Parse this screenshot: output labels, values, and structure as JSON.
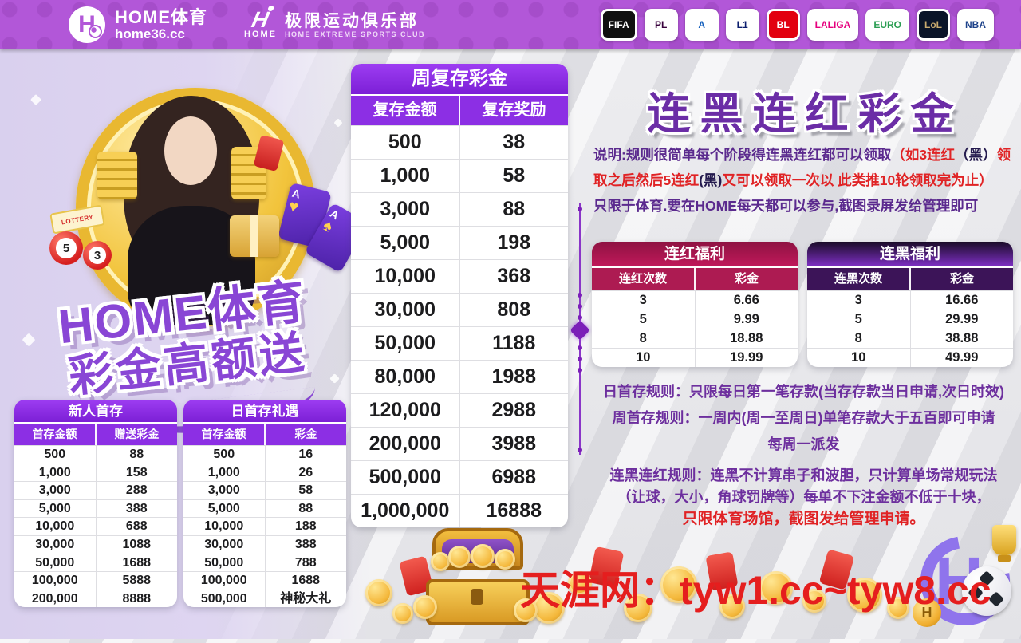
{
  "header": {
    "brand_primary": {
      "logo_letter": "H",
      "title": "HOME体育",
      "domain": "home36.cc"
    },
    "brand_secondary": {
      "logo_text": "HOME",
      "title": "极限运动俱乐部",
      "subtitle": "HOME EXTREME SPORTS CLUB"
    },
    "leagues": [
      {
        "id": "ea-sports-fifa",
        "short": "FIFA",
        "bg": "#101010",
        "fg": "#ffffff"
      },
      {
        "id": "premier-league",
        "short": "PL",
        "bg": "#ffffff",
        "fg": "#38003c"
      },
      {
        "id": "serie-a",
        "short": "A",
        "bg": "#ffffff",
        "fg": "#1560bd"
      },
      {
        "id": "ligue-1",
        "short": "L1",
        "bg": "#ffffff",
        "fg": "#0b1e6e"
      },
      {
        "id": "bundesliga",
        "short": "BL",
        "bg": "#e2000f",
        "fg": "#ffffff"
      },
      {
        "id": "laliga",
        "short": "LALIGA",
        "bg": "#ffffff",
        "fg": "#e6007e"
      },
      {
        "id": "euro-2024",
        "short": "EURO",
        "bg": "#ffffff",
        "fg": "#2a9d52"
      },
      {
        "id": "league-of-legends",
        "short": "LoL",
        "bg": "#0a1428",
        "fg": "#c8aa6e"
      },
      {
        "id": "nba",
        "short": "NBA",
        "bg": "#ffffff",
        "fg": "#1d428a"
      }
    ]
  },
  "hero": {
    "line1": "HOME体育",
    "line2": "彩金高额送",
    "decor": {
      "lottery_label": "LOTTERY",
      "ball_numbers": [
        "5",
        "3"
      ],
      "card_rank": "A",
      "card_suits": [
        "♥",
        "♠"
      ]
    }
  },
  "weekly_table": {
    "title": "周复存彩金",
    "headers": [
      "复存金额",
      "复存奖励"
    ],
    "rows": [
      [
        "500",
        "38"
      ],
      [
        "1,000",
        "58"
      ],
      [
        "3,000",
        "88"
      ],
      [
        "5,000",
        "198"
      ],
      [
        "10,000",
        "368"
      ],
      [
        "30,000",
        "808"
      ],
      [
        "50,000",
        "1188"
      ],
      [
        "80,000",
        "1988"
      ],
      [
        "120,000",
        "2988"
      ],
      [
        "200,000",
        "3988"
      ],
      [
        "500,000",
        "6988"
      ],
      [
        "1,000,000",
        "16888"
      ]
    ]
  },
  "new_user_table": {
    "title": "新人首存",
    "headers": [
      "首存金额",
      "赠送彩金"
    ],
    "rows": [
      [
        "500",
        "88"
      ],
      [
        "1,000",
        "158"
      ],
      [
        "3,000",
        "288"
      ],
      [
        "5,000",
        "388"
      ],
      [
        "10,000",
        "688"
      ],
      [
        "30,000",
        "1088"
      ],
      [
        "50,000",
        "1688"
      ],
      [
        "100,000",
        "5888"
      ],
      [
        "200,000",
        "8888"
      ]
    ]
  },
  "daily_table": {
    "title": "日首存礼遇",
    "headers": [
      "首存金额",
      "彩金"
    ],
    "rows": [
      [
        "500",
        "16"
      ],
      [
        "1,000",
        "26"
      ],
      [
        "3,000",
        "58"
      ],
      [
        "5,000",
        "88"
      ],
      [
        "10,000",
        "188"
      ],
      [
        "30,000",
        "388"
      ],
      [
        "50,000",
        "788"
      ],
      [
        "100,000",
        "1688"
      ],
      [
        "500,000",
        "神秘大礼"
      ]
    ]
  },
  "promo": {
    "title": "连黑连红彩金",
    "desc": {
      "d1a": "说明:规则很简单每个阶段得连黑连红都可以领取",
      "d1b": "（如3连红",
      "d1c": "（黑）",
      "d1d": "领",
      "d2a": "取之后然后5连红",
      "d2b": "(黑)",
      "d2c": "又可以领取一次以  此类推10轮领取完为止）",
      "d3": "只限于体育.要在HOME每天都可以参与,截图录屏发给管理即可"
    },
    "red_table": {
      "title": "连红福利",
      "headers": [
        "连红次数",
        "彩金"
      ],
      "rows": [
        [
          "3",
          "6.66"
        ],
        [
          "5",
          "9.99"
        ],
        [
          "8",
          "18.88"
        ],
        [
          "10",
          "19.99"
        ]
      ]
    },
    "black_table": {
      "title": "连黑福利",
      "headers": [
        "连黑次数",
        "彩金"
      ],
      "rows": [
        [
          "3",
          "16.66"
        ],
        [
          "5",
          "29.99"
        ],
        [
          "8",
          "38.88"
        ],
        [
          "10",
          "49.99"
        ]
      ]
    },
    "deposit_rules": {
      "line1": "日首存规则：只限每日第一笔存款(当存存款当日申请,次日时效)",
      "line2": "周首存规则：一周内(周一至周日)单笔存款大于五百即可申请",
      "line3": "每周一派发"
    },
    "streak_rules": {
      "line1": "连黑连红规则：连黑不计算串子和波胆，只计算单场常规玩法",
      "line2": "（让球，大小，角球罚牌等）每单不下注金额不低于十块，",
      "line3": "只限体育场馆，截图发给管理申请。"
    }
  },
  "watermark": "天涯网：tyw1.cc~tyw8.cc",
  "bottom_logo": {
    "coin_letter": "H"
  },
  "colors": {
    "topbar_purple": "#b257d8",
    "table_purple": "#8c2fe4",
    "crimson_header": "#ad1b52",
    "black_streak_header": "#3c1458",
    "title_purple": "#6b2da6",
    "text_purple": "#5b2a8e",
    "text_red": "#e02325",
    "watermark_red": "#e51e1e",
    "gold": "#f4b73a"
  }
}
